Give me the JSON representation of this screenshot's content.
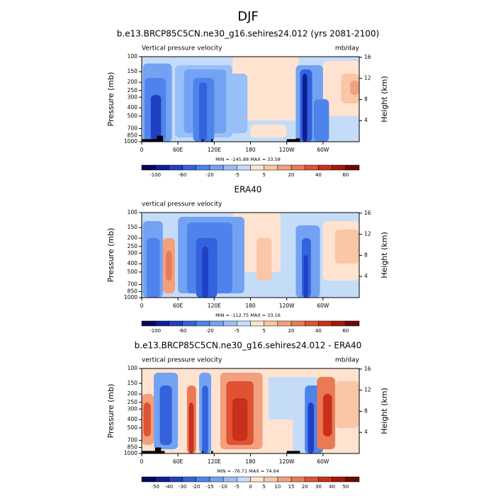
{
  "title": "DJF",
  "chart_data": [
    {
      "type": "contour",
      "title": "b.e13.BRCP85C5CN.ne30_g16.sehires24.012 (yrs 2081-2100)",
      "left_label": "Vertical pressure velocity",
      "right_label": "mb/day",
      "ylabel": "Pressure (mb)",
      "y2label": "Height (km)",
      "stats": "MIN = -145.88  MAX = 33.58",
      "log_scale": true,
      "xlim": [
        0,
        360
      ],
      "xticks": [
        0,
        {
          "value": 60,
          "label": "60E"
        },
        {
          "value": 120,
          "label": "120E"
        },
        180,
        {
          "value": 240,
          "label": "120W"
        },
        {
          "value": 300,
          "label": "60W"
        }
      ],
      "ylim": [
        1000,
        100
      ],
      "yticks": [
        100,
        150,
        200,
        250,
        300,
        400,
        500,
        700,
        850,
        1000
      ],
      "y2ticks": [
        4,
        8,
        12,
        16
      ],
      "colorbar": {
        "labels": [
          -100,
          -60,
          -20,
          -5,
          5,
          20,
          40,
          60
        ],
        "colors": [
          "#07075e",
          "#0d1f96",
          "#1f3fc4",
          "#3362dd",
          "#4f83ec",
          "#73a2f3",
          "#98bff7",
          "#c5dcf9",
          "#fde3d0",
          "#f9c6a6",
          "#f2a07d",
          "#ea7a55",
          "#df5232",
          "#c9301c",
          "#a3170c",
          "#6e0805"
        ]
      }
    },
    {
      "type": "contour",
      "title": "ERA40",
      "left_label": "vertical pressure velocity",
      "ylabel": "Pressure (mb)",
      "y2label": "Height (km)",
      "stats": "MIN = -112.75  MAX = 33.16",
      "log_scale": true,
      "xlim": [
        0,
        360
      ],
      "xticks": [
        0,
        {
          "value": 60,
          "label": "60E"
        },
        {
          "value": 120,
          "label": "120E"
        },
        180,
        {
          "value": 240,
          "label": "120W"
        },
        {
          "value": 300,
          "label": "60W"
        }
      ],
      "ylim": [
        1000,
        100
      ],
      "yticks": [
        100,
        150,
        200,
        250,
        300,
        400,
        500,
        700,
        850,
        1000
      ],
      "y2ticks": [
        4,
        8,
        12,
        16
      ],
      "colorbar": {
        "labels": [
          -100,
          -60,
          -20,
          -5,
          5,
          20,
          40,
          60
        ],
        "colors": [
          "#07075e",
          "#0d1f96",
          "#1f3fc4",
          "#3362dd",
          "#4f83ec",
          "#73a2f3",
          "#98bff7",
          "#c5dcf9",
          "#fde3d0",
          "#f9c6a6",
          "#f2a07d",
          "#ea7a55",
          "#df5232",
          "#c9301c",
          "#a3170c",
          "#6e0805"
        ]
      }
    },
    {
      "type": "contour",
      "title": "b.e13.BRCP85C5CN.ne30_g16.sehires24.012 - ERA40",
      "left_label": "vertical pressure velocity",
      "right_label": "mb/day",
      "ylabel": "Pressure (mb)",
      "y2label": "Height (km)",
      "stats": "MIN = -76.71  MAX = 74.64",
      "log_scale": true,
      "xlim": [
        0,
        360
      ],
      "xticks": [
        0,
        {
          "value": 60,
          "label": "60E"
        },
        {
          "value": 120,
          "label": "120E"
        },
        180,
        {
          "value": 240,
          "label": "120W"
        },
        {
          "value": 300,
          "label": "60W"
        }
      ],
      "ylim": [
        1000,
        100
      ],
      "yticks": [
        100,
        150,
        200,
        250,
        300,
        400,
        500,
        700,
        850,
        1000
      ],
      "y2ticks": [
        4,
        8,
        12,
        16
      ],
      "colorbar": {
        "labels": [
          -50,
          -40,
          -30,
          -20,
          -15,
          -10,
          -5,
          0,
          5,
          10,
          15,
          20,
          30,
          40,
          50
        ],
        "colors": [
          "#07075e",
          "#0d1f96",
          "#1f3fc4",
          "#3362dd",
          "#4f83ec",
          "#73a2f3",
          "#98bff7",
          "#c5dcf9",
          "#fde3d0",
          "#f9c6a6",
          "#f2a07d",
          "#ea7a55",
          "#df5232",
          "#c9301c",
          "#a3170c",
          "#6e0805"
        ]
      }
    }
  ]
}
